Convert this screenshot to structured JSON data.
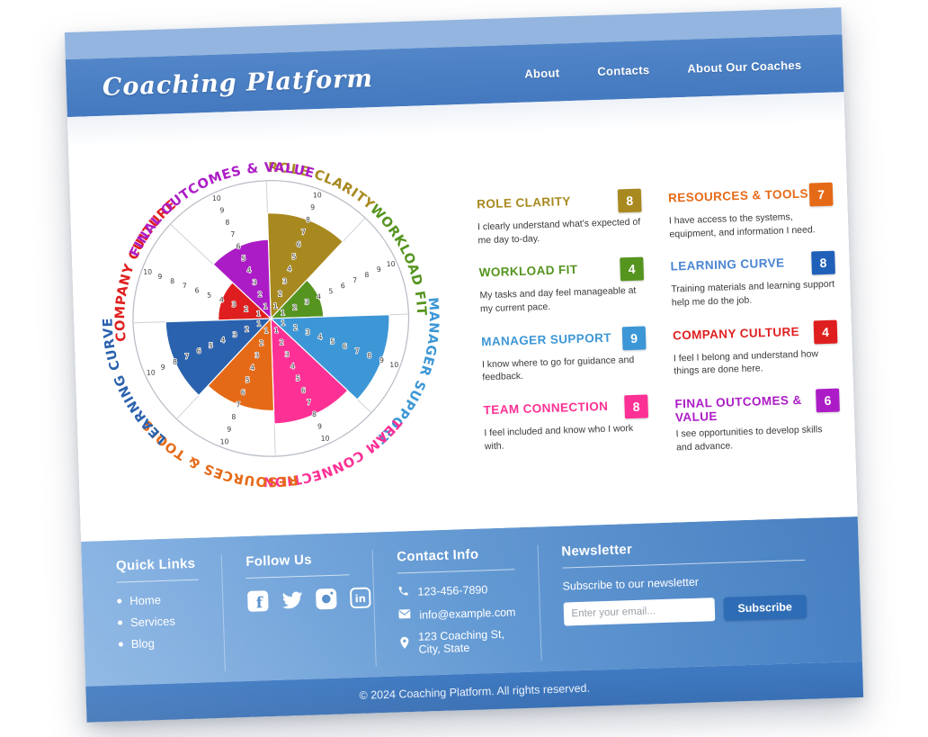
{
  "theme": {
    "strip_blue": "#93b5df",
    "header_blue": "#4a7ec4",
    "footer_dark": "#3a73bb",
    "button_blue": "#2e6cb5"
  },
  "header": {
    "logo": "Coaching Platform",
    "nav": [
      {
        "label": "About"
      },
      {
        "label": "Contacts"
      },
      {
        "label": "About Our Coaches"
      }
    ]
  },
  "chart_data": {
    "type": "polar-wheel",
    "direction": "clockwise",
    "start_angle_deg": 0,
    "scale_min": 1,
    "scale_max": 10,
    "tick_labels": [
      "1",
      "2",
      "3",
      "4",
      "5",
      "6",
      "7",
      "8",
      "9",
      "10"
    ],
    "categories": [
      "ROLE CLARITY",
      "WORKLOAD FIT",
      "MANAGER SUPPORT",
      "TEAM CONNECTION",
      "RESOURCES & TOOLS",
      "LEARNING CURVE",
      "COMPANY CULTURE",
      "FINAL OUTCOMES & VALUE"
    ],
    "values": [
      8,
      4,
      9,
      8,
      7,
      8,
      4,
      6
    ],
    "colors": [
      "#a8891f",
      "#55941f",
      "#3d97d6",
      "#fd3095",
      "#e56a17",
      "#2b62ae",
      "#df1f1f",
      "#ac1cc6"
    ]
  },
  "legend": {
    "columns": [
      [
        {
          "title": "ROLE CLARITY",
          "score": "8",
          "color": "#a8891f",
          "title_color": "#a8891f",
          "description": "I clearly understand what's expected of me day to-day."
        },
        {
          "title": "WORKLOAD FIT",
          "score": "4",
          "color": "#55941f",
          "title_color": "#55941f",
          "description": "My tasks and day feel manageable at my current pace."
        },
        {
          "title": "MANAGER SUPPORT",
          "score": "9",
          "color": "#3d97d6",
          "title_color": "#3d97d6",
          "description": "I know where to go for guidance and feedback."
        },
        {
          "title": "TEAM CONNECTION",
          "score": "8",
          "color": "#fd3095",
          "title_color": "#fd3095",
          "description": "I feel included and know who I work with."
        }
      ],
      [
        {
          "title": "RESOURCES & TOOLS",
          "score": "7",
          "color": "#e56a17",
          "title_color": "#e56a17",
          "description": "I have access to the systems, equipment, and information I need."
        },
        {
          "title": "LEARNING CURVE",
          "score": "8",
          "color": "#2160b8",
          "title_color": "#4a85d2",
          "description": "Training materials and learning support help me do the job."
        },
        {
          "title": "COMPANY CULTURE",
          "score": "4",
          "color": "#df1f1f",
          "title_color": "#df1f1f",
          "description": "I feel I belong and understand how things are done here."
        },
        {
          "title": "FINAL OUTCOMES & VALUE",
          "score": "6",
          "color": "#ac1cc6",
          "title_color": "#ac1cc6",
          "description": "I see opportunities to develop skills and advance."
        }
      ]
    ]
  },
  "footer": {
    "quick_links": {
      "title": "Quick Links",
      "items": [
        "Home",
        "Services",
        "Blog"
      ]
    },
    "follow_us": {
      "title": "Follow Us",
      "icons": [
        "facebook",
        "twitter",
        "instagram",
        "linkedin"
      ]
    },
    "contact": {
      "title": "Contact Info",
      "rows": [
        {
          "icon": "phone",
          "text": "123-456-7890"
        },
        {
          "icon": "email",
          "text": "info@example.com"
        },
        {
          "icon": "location",
          "text": "123 Coaching St, City, State"
        }
      ]
    },
    "newsletter": {
      "title": "Newsletter",
      "subtitle": "Subscribe to our newsletter",
      "placeholder": "Enter your email...",
      "button": "Subscribe"
    },
    "copyright": "© 2024 Coaching Platform. All rights reserved."
  }
}
